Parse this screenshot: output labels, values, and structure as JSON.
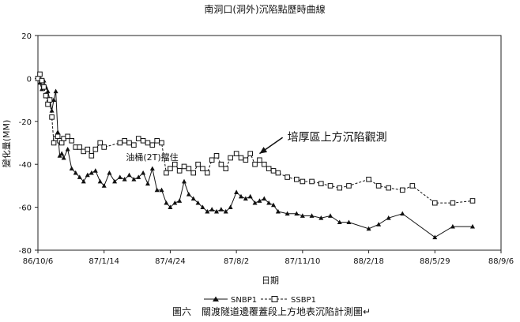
{
  "chart_data": {
    "type": "line",
    "title": "南洞口(洞外)沉陷點歷時曲線",
    "xlabel": "日期",
    "ylabel": "變化量(MM)",
    "xlim": [
      "86/10/6",
      "88/9/6"
    ],
    "ylim": [
      -80,
      20
    ],
    "y_ticks": [
      20,
      0,
      -20,
      -40,
      -60,
      -80
    ],
    "x_ticks": [
      "86/10/6",
      "87/1/14",
      "87/4/24",
      "87/8/2",
      "87/11/10",
      "88/2/18",
      "88/5/29",
      "88/9/6"
    ],
    "grid": "none",
    "legend_placement": "bottom",
    "series": [
      {
        "name": "SNBP1",
        "marker": "triangle",
        "color": "#111111",
        "x": [
          "86/10/6",
          "86/10/9",
          "86/10/12",
          "86/10/15",
          "86/10/18",
          "86/10/21",
          "86/10/24",
          "86/10/27",
          "86/10/30",
          "86/11/2",
          "86/11/5",
          "86/11/8",
          "86/11/11",
          "86/11/14",
          "86/11/20",
          "86/11/26",
          "86/12/2",
          "86/12/8",
          "86/12/14",
          "86/12/20",
          "86/12/26",
          "87/1/1",
          "87/1/8",
          "87/1/14",
          "87/1/22",
          "87/1/30",
          "87/2/7",
          "87/2/14",
          "87/2/21",
          "87/2/28",
          "87/3/7",
          "87/3/14",
          "87/3/21",
          "87/3/28",
          "87/4/4",
          "87/4/11",
          "87/4/18",
          "87/4/24",
          "87/5/1",
          "87/5/8",
          "87/5/15",
          "87/5/22",
          "87/5/29",
          "87/6/5",
          "87/6/12",
          "87/6/19",
          "87/6/26",
          "87/7/3",
          "87/7/10",
          "87/7/17",
          "87/7/24",
          "87/8/2",
          "87/8/9",
          "87/8/16",
          "87/8/23",
          "87/8/30",
          "87/9/6",
          "87/9/13",
          "87/9/20",
          "87/9/27",
          "87/10/4",
          "87/10/18",
          "87/11/1",
          "87/11/10",
          "87/11/24",
          "87/12/8",
          "87/12/22",
          "88/1/5",
          "88/1/19",
          "88/2/18",
          "88/3/5",
          "88/3/20",
          "88/4/10",
          "88/5/29",
          "88/6/25",
          "88/7/25"
        ],
        "y": [
          0,
          -2,
          -5,
          -1,
          -4,
          -6,
          -10,
          -15,
          -10,
          -6,
          -25,
          -36,
          -35,
          -37,
          -33,
          -42,
          -44,
          -46,
          -48,
          -45,
          -44,
          -43,
          -48,
          -50,
          -44,
          -48,
          -46,
          -47,
          -45,
          -47,
          -46,
          -44,
          -49,
          -42,
          -52,
          -52,
          -58,
          -60,
          -58,
          -57,
          -48,
          -54,
          -56,
          -58,
          -60,
          -62,
          -61,
          -62,
          -61,
          -62,
          -60,
          -53,
          -55,
          -56,
          -55,
          -58,
          -57,
          -56,
          -58,
          -59,
          -62,
          -63,
          -63,
          -64,
          -64,
          -65,
          -64,
          -67,
          -67,
          -70,
          -68,
          -65,
          -63,
          -74,
          -69,
          -69
        ]
      },
      {
        "name": "SSBP1",
        "marker": "square",
        "color": "#111111",
        "x": [
          "86/10/6",
          "86/10/9",
          "86/10/12",
          "86/10/15",
          "86/10/18",
          "86/10/21",
          "86/10/24",
          "86/10/27",
          "86/10/30",
          "86/11/2",
          "86/11/5",
          "86/11/8",
          "86/11/11",
          "86/11/14",
          "86/11/20",
          "86/11/26",
          "86/12/2",
          "86/12/8",
          "86/12/14",
          "86/12/20",
          "86/12/26",
          "87/1/1",
          "87/1/8",
          "87/1/14",
          "87/2/7",
          "87/2/14",
          "87/2/21",
          "87/2/28",
          "87/3/7",
          "87/3/14",
          "87/3/21",
          "87/3/28",
          "87/4/4",
          "87/4/11",
          "87/4/18",
          "87/4/24",
          "87/5/1",
          "87/5/8",
          "87/5/15",
          "87/5/22",
          "87/5/29",
          "87/6/5",
          "87/6/12",
          "87/6/19",
          "87/6/26",
          "87/7/3",
          "87/7/10",
          "87/7/17",
          "87/7/24",
          "87/8/2",
          "87/8/9",
          "87/8/16",
          "87/8/23",
          "87/8/30",
          "87/9/6",
          "87/9/13",
          "87/9/20",
          "87/9/27",
          "87/10/4",
          "87/10/18",
          "87/11/1",
          "87/11/10",
          "87/11/24",
          "87/12/8",
          "87/12/22",
          "88/1/5",
          "88/1/19",
          "88/2/18",
          "88/3/5",
          "88/3/20",
          "88/4/10",
          "88/4/25",
          "88/5/29",
          "88/6/25",
          "88/7/25"
        ],
        "y": [
          0,
          2,
          -1,
          -4,
          -8,
          -12,
          -10,
          -18,
          -30,
          -28,
          -27,
          -29,
          -30,
          -28,
          -27,
          -29,
          -32,
          -32,
          -34,
          -33,
          -36,
          -33,
          -30,
          -32,
          -30,
          -29,
          -30,
          -31,
          -28,
          -29,
          -30,
          -31,
          -29,
          -30,
          -44,
          -42,
          -40,
          -43,
          -41,
          -42,
          -44,
          -40,
          -42,
          -44,
          -38,
          -36,
          -40,
          -42,
          -37,
          -35,
          -37,
          -38,
          -35,
          -40,
          -38,
          -40,
          -42,
          -43,
          -44,
          -46,
          -47,
          -48,
          -48,
          -49,
          -50,
          -51,
          -50,
          -47,
          -50,
          -51,
          -52,
          -50,
          -58,
          -58,
          -57
        ]
      }
    ],
    "annotations": [
      {
        "text": "培厚區上方沉陷觀測",
        "x": "87/10/18",
        "y": -29,
        "arrow_to": {
          "x": "87/9/6",
          "y": -35
        }
      },
      {
        "text": "油桶(2T)擋住",
        "x": "87/2/16",
        "y": -38
      }
    ]
  },
  "caption": {
    "figure_label": "圖六",
    "text": "關渡隧道邊覆蓋段上方地表沉陷計測圖↵"
  }
}
